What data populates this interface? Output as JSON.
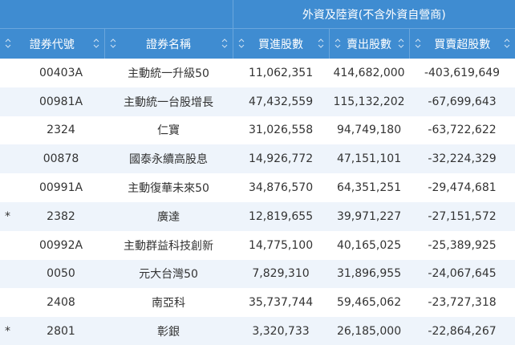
{
  "header": {
    "group": "外資及陸資(不含外資自營商)",
    "columns": [
      "證券代號",
      "證券名稱",
      "買進股數",
      "賣出股數",
      "買賣超股數"
    ]
  },
  "table": {
    "rows": [
      {
        "code": "00403A",
        "name": "主動統一升級50",
        "buy": "11,062,351",
        "sell": "414,682,000",
        "net": "-403,619,649"
      },
      {
        "code": "00981A",
        "name": "主動統一台股增長",
        "buy": "47,432,559",
        "sell": "115,132,202",
        "net": "-67,699,643"
      },
      {
        "code": "2324",
        "name": "仁寶",
        "buy": "31,026,558",
        "sell": "94,749,180",
        "net": "-63,722,622"
      },
      {
        "code": "00878",
        "name": "國泰永續高股息",
        "buy": "14,926,772",
        "sell": "47,151,101",
        "net": "-32,224,329"
      },
      {
        "code": "00991A",
        "name": "主動復華未來50",
        "buy": "34,876,570",
        "sell": "64,351,251",
        "net": "-29,474,681"
      },
      {
        "mark": "*",
        "code": "2382",
        "name": "廣達",
        "buy": "12,819,655",
        "sell": "39,971,227",
        "net": "-27,151,572"
      },
      {
        "code": "00992A",
        "name": "主動群益科技創新",
        "buy": "14,775,100",
        "sell": "40,165,025",
        "net": "-25,389,925"
      },
      {
        "code": "0050",
        "name": "元大台灣50",
        "buy": "7,829,310",
        "sell": "31,896,955",
        "net": "-24,067,645"
      },
      {
        "code": "2408",
        "name": "南亞科",
        "buy": "35,737,744",
        "sell": "59,465,062",
        "net": "-23,727,318"
      },
      {
        "mark": "*",
        "code": "2801",
        "name": "彰銀",
        "buy": "3,320,733",
        "sell": "26,185,000",
        "net": "-22,864,267"
      }
    ]
  }
}
